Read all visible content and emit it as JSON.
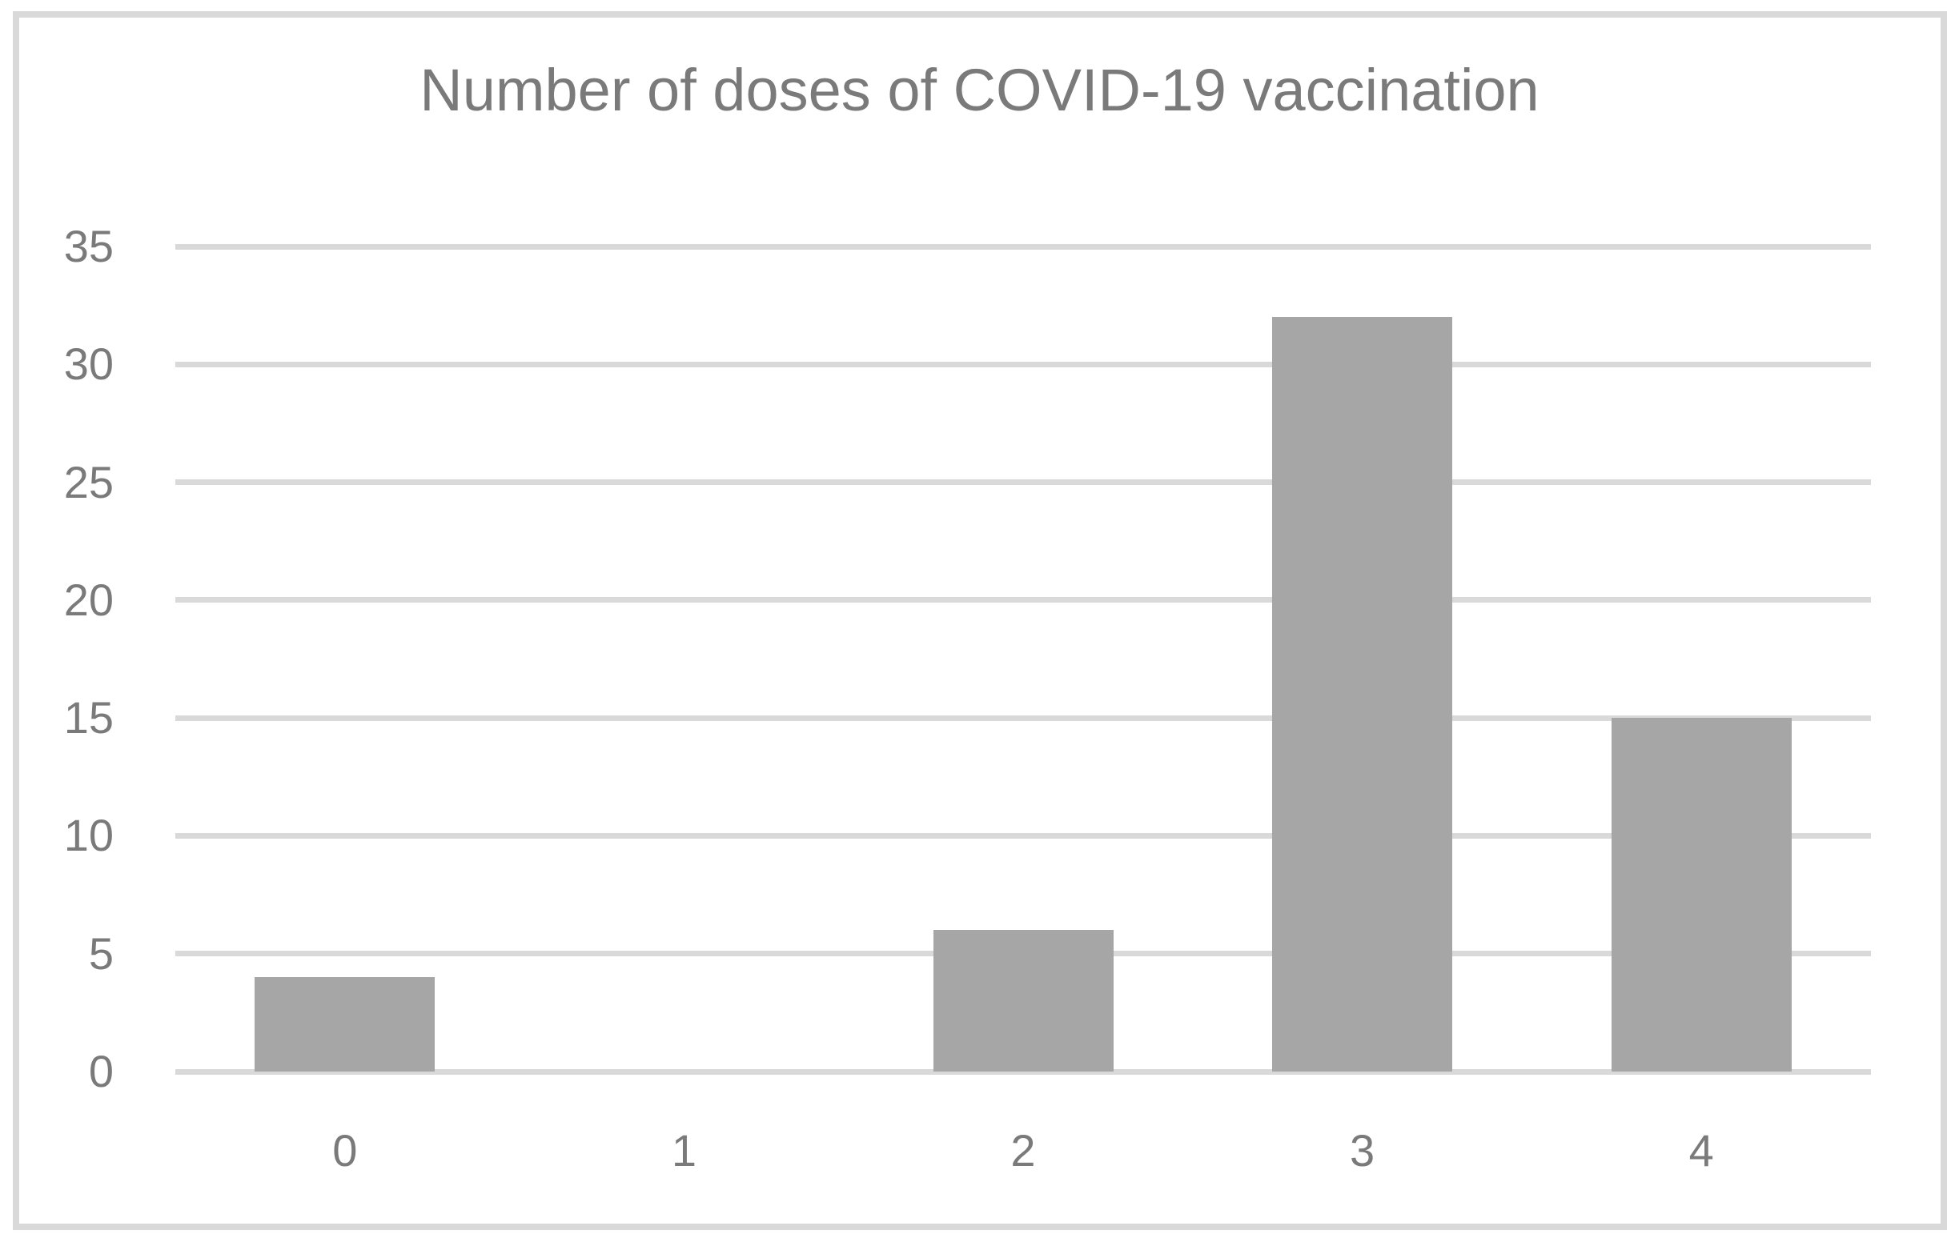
{
  "chart_data": {
    "type": "bar",
    "title": "Number of doses of COVID-19 vaccination",
    "categories": [
      "0",
      "1",
      "2",
      "3",
      "4"
    ],
    "values": [
      4,
      0,
      6,
      32,
      15
    ],
    "xlabel": "",
    "ylabel": "",
    "ylim": [
      0,
      35
    ],
    "yticks": [
      0,
      5,
      10,
      15,
      20,
      25,
      30,
      35
    ],
    "grid": "horizontal",
    "legend": "none",
    "colors": {
      "bar_fill": "#a6a6a6",
      "gridline": "#d9d9d9",
      "tick_label": "#7a7a7a",
      "title": "#7a7a7a",
      "frame_border": "#d9d9d9",
      "background": "#ffffff"
    }
  }
}
